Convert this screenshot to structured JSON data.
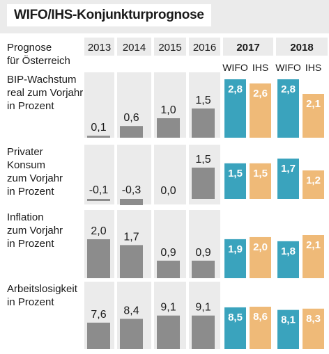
{
  "title": "WIFO/IHS-Konjunkturprognose",
  "header": {
    "label_lines": [
      "Prognose",
      "für Österreich"
    ],
    "years": [
      "2013",
      "2014",
      "2015",
      "2016",
      "2017",
      "2018"
    ],
    "forecast_years": [
      "2017",
      "2018"
    ],
    "institutes": [
      "WIFO",
      "IHS"
    ]
  },
  "colors": {
    "historic": "#8c8c8c",
    "wifo": "#3aa3bd",
    "ihs": "#efba78",
    "header_bg": "#ebebeb",
    "panel_bg": "#ebebeb"
  },
  "chart_data": {
    "type": "bar",
    "categories": [
      "2013",
      "2014",
      "2015",
      "2016",
      "2017",
      "2018"
    ],
    "series_legend": [
      "WIFO",
      "IHS"
    ],
    "panels": [
      {
        "label_lines": [
          "BIP-Wachstum",
          "real zum Vorjahr",
          "in Prozent"
        ],
        "historic": [
          {
            "year": "2013",
            "value": 0.1,
            "label": "0,1"
          },
          {
            "year": "2014",
            "value": 0.6,
            "label": "0,6"
          },
          {
            "year": "2015",
            "value": 1.0,
            "label": "1,0"
          },
          {
            "year": "2016",
            "value": 1.5,
            "label": "1,5"
          }
        ],
        "forecast": [
          {
            "year": "2017",
            "wifo": 2.8,
            "wifo_label": "2,8",
            "ihs": 2.6,
            "ihs_label": "2,6"
          },
          {
            "year": "2018",
            "wifo": 2.8,
            "wifo_label": "2,8",
            "ihs": 2.1,
            "ihs_label": "2,1"
          }
        ]
      },
      {
        "label_lines": [
          "Privater",
          "Konsum",
          "zum Vorjahr",
          "in Prozent"
        ],
        "historic": [
          {
            "year": "2013",
            "value": -0.1,
            "label": "-0,1"
          },
          {
            "year": "2014",
            "value": -0.3,
            "label": "-0,3"
          },
          {
            "year": "2015",
            "value": 0.0,
            "label": "0,0"
          },
          {
            "year": "2016",
            "value": 1.5,
            "label": "1,5"
          }
        ],
        "forecast": [
          {
            "year": "2017",
            "wifo": 1.5,
            "wifo_label": "1,5",
            "ihs": 1.5,
            "ihs_label": "1,5"
          },
          {
            "year": "2018",
            "wifo": 1.7,
            "wifo_label": "1,7",
            "ihs": 1.2,
            "ihs_label": "1,2"
          }
        ]
      },
      {
        "label_lines": [
          "Inflation",
          "zum Vorjahr",
          "in Prozent"
        ],
        "historic": [
          {
            "year": "2013",
            "value": 2.0,
            "label": "2,0"
          },
          {
            "year": "2014",
            "value": 1.7,
            "label": "1,7"
          },
          {
            "year": "2015",
            "value": 0.9,
            "label": "0,9"
          },
          {
            "year": "2016",
            "value": 0.9,
            "label": "0,9"
          }
        ],
        "forecast": [
          {
            "year": "2017",
            "wifo": 1.9,
            "wifo_label": "1,9",
            "ihs": 2.0,
            "ihs_label": "2,0"
          },
          {
            "year": "2018",
            "wifo": 1.8,
            "wifo_label": "1,8",
            "ihs": 2.1,
            "ihs_label": "2,1"
          }
        ]
      },
      {
        "label_lines": [
          "Arbeitslosigkeit",
          "in Prozent"
        ],
        "historic": [
          {
            "year": "2013",
            "value": 7.6,
            "label": "7,6"
          },
          {
            "year": "2014",
            "value": 8.4,
            "label": "8,4"
          },
          {
            "year": "2015",
            "value": 9.1,
            "label": "9,1"
          },
          {
            "year": "2016",
            "value": 9.1,
            "label": "9,1"
          }
        ],
        "forecast": [
          {
            "year": "2017",
            "wifo": 8.5,
            "wifo_label": "8,5",
            "ihs": 8.6,
            "ihs_label": "8,6"
          },
          {
            "year": "2018",
            "wifo": 8.1,
            "wifo_label": "8,1",
            "ihs": 8.3,
            "ihs_label": "8,3"
          }
        ]
      }
    ]
  }
}
